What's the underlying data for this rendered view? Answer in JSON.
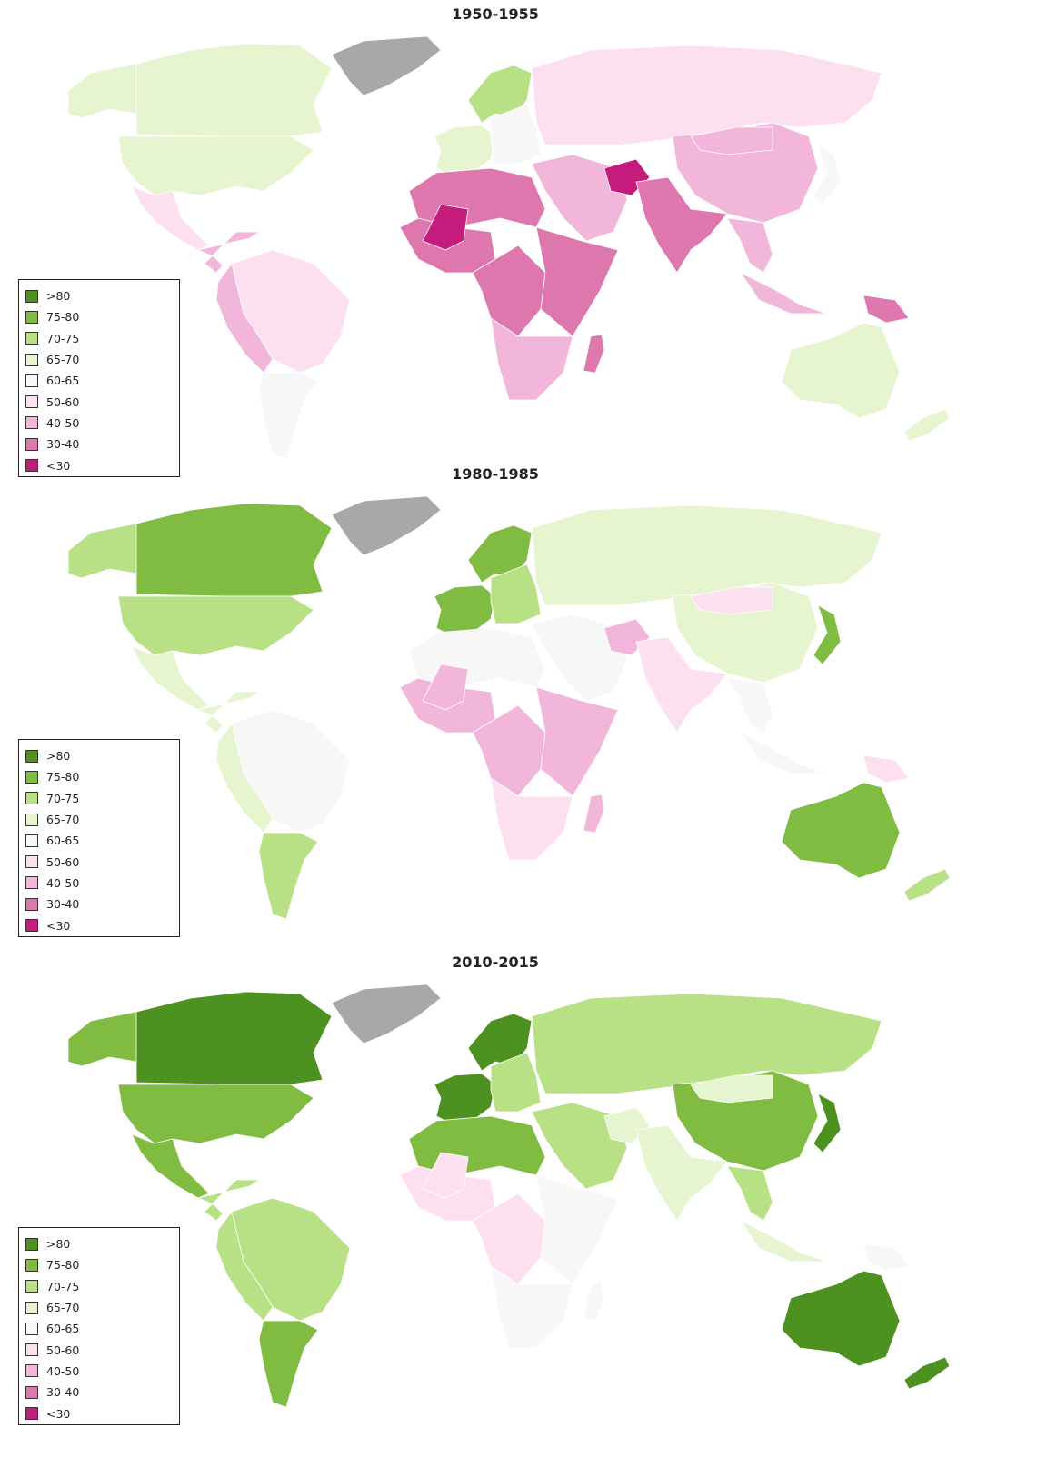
{
  "legend": [
    {
      "label": ">80",
      "color": "#4d9221"
    },
    {
      "label": "75-80",
      "color": "#7fbc41"
    },
    {
      "label": "70-75",
      "color": "#b8e186"
    },
    {
      "label": "65-70",
      "color": "#e6f5d0"
    },
    {
      "label": "60-65",
      "color": "#f7f7f7"
    },
    {
      "label": "50-60",
      "color": "#fde0ef"
    },
    {
      "label": "40-50",
      "color": "#f1b6da"
    },
    {
      "label": "30-40",
      "color": "#de77ae"
    },
    {
      "label": "<30",
      "color": "#c51b7d"
    }
  ],
  "no_data_color": "#a8a8a8",
  "maps": [
    {
      "title": "1950-1955",
      "regions": {
        "alaska": "65-70",
        "canada": "65-70",
        "usa": "65-70",
        "mexico": "50-60",
        "central-america": "40-50",
        "north-south-america": "50-60",
        "andes": "40-50",
        "southern-cone": "60-65",
        "scandinavia": "70-75",
        "western-europe": "65-70",
        "eastern-europe": "60-65",
        "russia": "50-60",
        "north-africa": "30-40",
        "west-africa": "30-40",
        "mali": "<30",
        "central-africa": "30-40",
        "east-africa": "30-40",
        "southern-africa": "40-50",
        "middle-east": "40-50",
        "afghanistan": "<30",
        "india": "30-40",
        "china": "40-50",
        "mongolia": "40-50",
        "southeast-asia": "40-50",
        "japan": "60-65",
        "indonesia": "40-50",
        "papua-new-guinea": "30-40",
        "australia": "65-70",
        "new-zealand": "65-70",
        "madagascar": "30-40"
      }
    },
    {
      "title": "1980-1985",
      "regions": {
        "alaska": "70-75",
        "canada": "75-80",
        "usa": "70-75",
        "mexico": "65-70",
        "central-america": "65-70",
        "north-south-america": "60-65",
        "andes": "65-70",
        "southern-cone": "70-75",
        "scandinavia": "75-80",
        "western-europe": "75-80",
        "eastern-europe": "70-75",
        "russia": "65-70",
        "north-africa": "60-65",
        "west-africa": "40-50",
        "mali": "40-50",
        "central-africa": "40-50",
        "east-africa": "40-50",
        "southern-africa": "50-60",
        "middle-east": "60-65",
        "afghanistan": "40-50",
        "india": "50-60",
        "china": "65-70",
        "mongolia": "50-60",
        "southeast-asia": "60-65",
        "japan": "75-80",
        "indonesia": "60-65",
        "papua-new-guinea": "50-60",
        "australia": "75-80",
        "new-zealand": "70-75",
        "madagascar": "40-50"
      }
    },
    {
      "title": "2010-2015",
      "regions": {
        "alaska": "75-80",
        "canada": ">80",
        "usa": "75-80",
        "mexico": "75-80",
        "central-america": "70-75",
        "north-south-america": "70-75",
        "andes": "70-75",
        "southern-cone": "75-80",
        "scandinavia": ">80",
        "western-europe": ">80",
        "eastern-europe": "70-75",
        "russia": "70-75",
        "north-africa": "75-80",
        "west-africa": "50-60",
        "mali": "50-60",
        "central-africa": "50-60",
        "east-africa": "60-65",
        "southern-africa": "60-65",
        "middle-east": "70-75",
        "afghanistan": "65-70",
        "india": "65-70",
        "china": "75-80",
        "mongolia": "65-70",
        "southeast-asia": "70-75",
        "japan": ">80",
        "indonesia": "65-70",
        "papua-new-guinea": "60-65",
        "australia": ">80",
        "new-zealand": ">80",
        "madagascar": "60-65"
      }
    }
  ]
}
